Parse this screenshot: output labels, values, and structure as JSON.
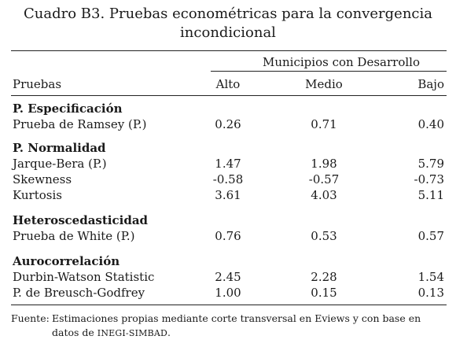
{
  "title_line1": "Cuadro B3. Pruebas econométricas para la convergencia",
  "title_line2": "incondicional",
  "group_header": "Municipios con Desarrollo",
  "headers": {
    "label": "Pruebas",
    "alto": "Alto",
    "medio": "Medio",
    "bajo": "Bajo"
  },
  "rows": [
    {
      "section": "P. Especificación"
    },
    {
      "label": "Prueba de Ramsey (P.)",
      "alto": "0.26",
      "medio": "0.71",
      "bajo": "0.40"
    },
    {
      "section": "P. Normalidad"
    },
    {
      "label": "Jarque-Bera (P.)",
      "alto": "1.47",
      "medio": "1.98",
      "bajo": "5.79"
    },
    {
      "label": "Skewness",
      "alto": "-0.58",
      "medio": "-0.57",
      "bajo": "-0.73"
    },
    {
      "label": "Kurtosis",
      "alto": "3.61",
      "medio": "4.03",
      "bajo": "5.11"
    },
    {
      "section": "Heteroscedasticidad"
    },
    {
      "label": "Prueba de White (P.)",
      "alto": "0.76",
      "medio": "0.53",
      "bajo": "0.57"
    },
    {
      "section": "Aurocorrelación"
    },
    {
      "label": "Durbin-Watson Statistic",
      "alto": "2.45",
      "medio": "2.28",
      "bajo": "1.54"
    },
    {
      "label": "P. de Breusch-Godfrey",
      "alto": "1.00",
      "medio": "0.15",
      "bajo": "0.13"
    }
  ],
  "footnote": {
    "label": "Fuente:",
    "text_main": "Estimaciones propias mediante corte transversal en Eviews y con base en datos de",
    "text_source": "INEGI-SIMBAD",
    "text_end": "."
  }
}
